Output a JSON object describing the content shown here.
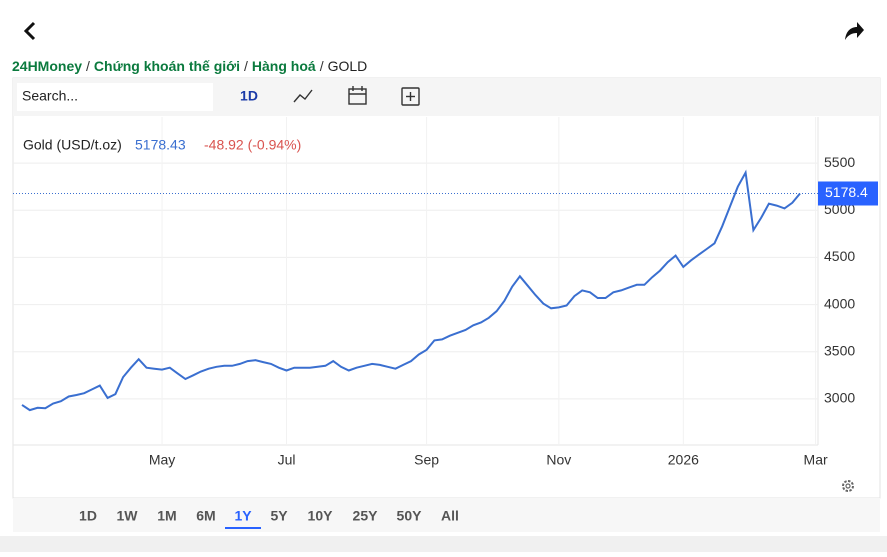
{
  "header": {
    "breadcrumb": [
      "24HMoney",
      "Chứng khoán thế giới",
      "Hàng hoá",
      "GOLD"
    ],
    "separator": "/"
  },
  "toolbar": {
    "search_placeholder": "Search...",
    "interval": "1D"
  },
  "chart_data": {
    "type": "line",
    "title": "Gold (USD/t.oz)",
    "last_value": "5178.43",
    "change": "-48.92 (-0.94%)",
    "price_label": "5178.4",
    "categories": [
      null,
      null,
      null,
      null,
      null,
      null,
      null,
      null,
      null,
      null,
      null,
      null,
      null,
      null,
      null,
      null,
      null,
      null,
      "May",
      null,
      null,
      null,
      null,
      null,
      null,
      null,
      null,
      null,
      null,
      null,
      null,
      null,
      null,
      null,
      "Jul",
      null,
      null,
      null,
      null,
      null,
      null,
      null,
      null,
      null,
      null,
      null,
      null,
      null,
      null,
      null,
      null,
      null,
      "Sep",
      null,
      null,
      null,
      null,
      null,
      null,
      null,
      null,
      null,
      null,
      null,
      null,
      null,
      null,
      null,
      null,
      "Nov",
      null,
      null,
      null,
      null,
      null,
      null,
      null,
      null,
      null,
      null,
      null,
      null,
      null,
      null,
      null,
      "2026",
      null,
      null,
      null,
      null,
      null,
      null,
      null,
      null,
      null,
      null,
      null,
      null,
      null,
      null,
      null,
      null,
      "Mar"
    ],
    "series": [
      {
        "name": "Gold (USD/t.oz)",
        "color": "#3a6fd0",
        "values": [
          2935,
          2880,
          2905,
          2900,
          2950,
          2975,
          3025,
          3040,
          3060,
          3100,
          3140,
          3010,
          3050,
          3230,
          3330,
          3420,
          3330,
          3320,
          3310,
          3330,
          3270,
          3210,
          3250,
          3290,
          3320,
          3340,
          3350,
          3350,
          3370,
          3400,
          3410,
          3390,
          3370,
          3330,
          3300,
          3330,
          3330,
          3330,
          3340,
          3350,
          3400,
          3340,
          3300,
          3330,
          3350,
          3370,
          3360,
          3340,
          3320,
          3360,
          3400,
          3470,
          3520,
          3620,
          3630,
          3670,
          3700,
          3730,
          3780,
          3810,
          3860,
          3930,
          4040,
          4190,
          4300,
          4200,
          4100,
          4010,
          3960,
          3970,
          3990,
          4090,
          4150,
          4130,
          4070,
          4070,
          4130,
          4150,
          4180,
          4210,
          4210,
          4290,
          4360,
          4450,
          4520,
          4400,
          4470,
          4530,
          4590,
          4650,
          4830,
          5040,
          5250,
          5400,
          4790,
          4920,
          5070,
          5050,
          5020,
          5080,
          5178.43,
          null,
          null
        ]
      }
    ],
    "ylim": [
      2510,
      5990
    ],
    "yticks": [
      3000,
      3500,
      4000,
      4500,
      5000,
      5500
    ],
    "grid": true
  },
  "ranges": [
    "1D",
    "1W",
    "1M",
    "6M",
    "1Y",
    "5Y",
    "10Y",
    "25Y",
    "50Y",
    "All"
  ],
  "selected_range": 4
}
